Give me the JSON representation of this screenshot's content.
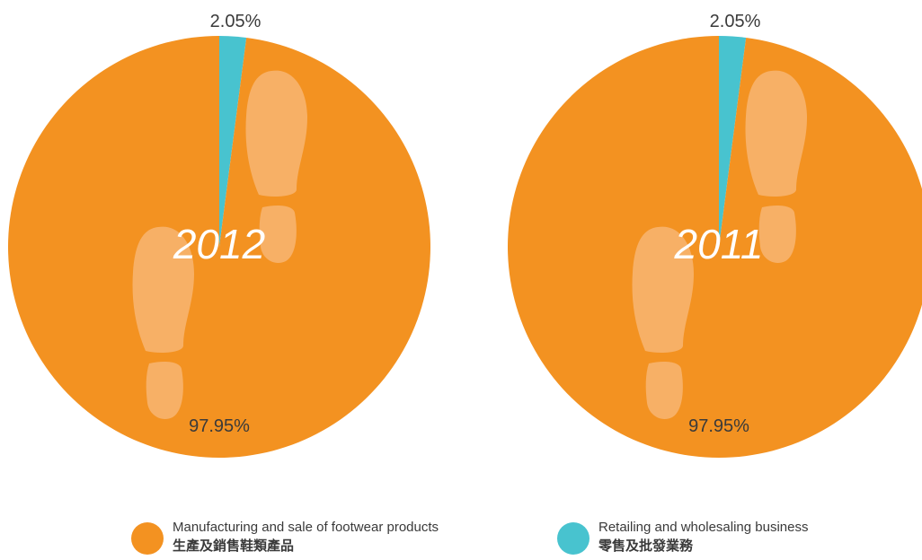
{
  "colors": {
    "manufacturing": "#f39221",
    "retailing": "#48c3cf",
    "footprint": "#f7b066",
    "year_label": "#ffffff",
    "text": "#3a3a3a"
  },
  "chart_data": [
    {
      "type": "pie",
      "center_label": "2012",
      "categories": [
        "Manufacturing and sale of footwear products",
        "Retailing and wholesaling business"
      ],
      "values": [
        97.95,
        2.05
      ],
      "value_labels": [
        "97.95%",
        "2.05%"
      ]
    },
    {
      "type": "pie",
      "center_label": "2011",
      "categories": [
        "Manufacturing and sale of footwear products",
        "Retailing and wholesaling business"
      ],
      "values": [
        97.95,
        2.05
      ],
      "value_labels": [
        "97.95%",
        "2.05%"
      ]
    }
  ],
  "legend": [
    {
      "key": "manufacturing",
      "en": "Manufacturing and sale of footwear products",
      "zh": "生產及銷售鞋類產品"
    },
    {
      "key": "retailing",
      "en": "Retailing and wholesaling business",
      "zh": "零售及批發業務"
    }
  ]
}
